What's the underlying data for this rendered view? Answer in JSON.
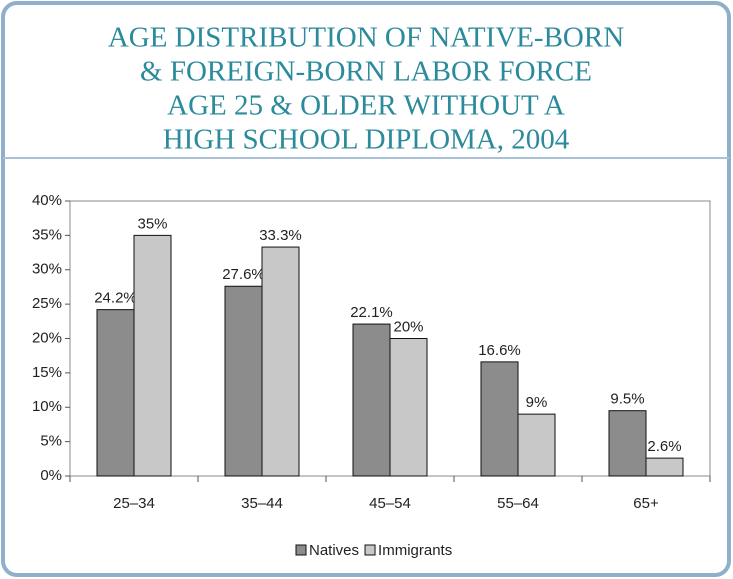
{
  "chart_data": {
    "type": "bar",
    "title": [
      "AGE DISTRIBUTION OF NATIVE-BORN",
      "& FOREIGN-BORN LABOR FORCE",
      "AGE 25 & OLDER WITHOUT A",
      "HIGH SCHOOL DIPLOMA, 2004"
    ],
    "categories": [
      "25–34",
      "35–44",
      "45–54",
      "55–64",
      "65+"
    ],
    "series": [
      {
        "name": "Natives",
        "color": "#8c8c8c",
        "values": [
          24.2,
          27.6,
          22.1,
          16.6,
          9.5
        ],
        "value_labels": [
          "24.2%",
          "27.6%",
          "22.1%",
          "16.6%",
          "9.5%"
        ]
      },
      {
        "name": "Immigrants",
        "color": "#c8c8c8",
        "values": [
          35,
          33.3,
          20,
          9,
          2.6
        ],
        "value_labels": [
          "35%",
          "33.3%",
          "20%",
          "9%",
          "2.6%"
        ]
      }
    ],
    "ylim": [
      0,
      40
    ],
    "yticks": [
      {
        "value": 0,
        "label": "0%"
      },
      {
        "value": 5,
        "label": "5%"
      },
      {
        "value": 10,
        "label": "10%"
      },
      {
        "value": 15,
        "label": "15%"
      },
      {
        "value": 20,
        "label": "20%"
      },
      {
        "value": 25,
        "label": "25%"
      },
      {
        "value": 30,
        "label": "30%"
      },
      {
        "value": 35,
        "label": "35%"
      },
      {
        "value": 40,
        "label": "40%"
      }
    ],
    "grid": false,
    "legend": "bottom"
  }
}
